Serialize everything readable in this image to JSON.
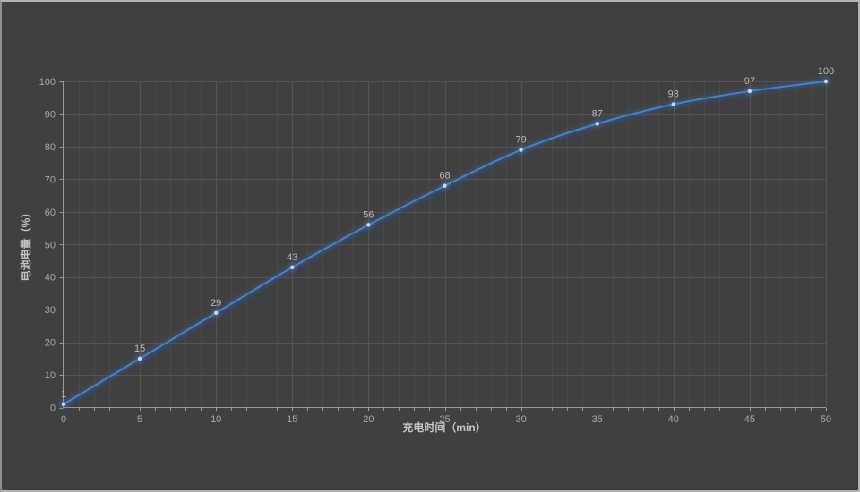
{
  "colors": {
    "background": "#404040",
    "frame_border": "#b3b3b3",
    "line": "#4e80c0",
    "line_glow": "#2f5f9e",
    "marker": "#c5d9f1",
    "grid_major": "#545454",
    "grid_minor": "#4a4a4a",
    "axis": "#9a9a9a",
    "tick_label": "#a9a9a9",
    "data_label": "#b9b9b9",
    "axis_title": "#c4c4c4"
  },
  "chart_data": {
    "type": "line",
    "title": "",
    "x": [
      0,
      5,
      10,
      15,
      20,
      25,
      30,
      35,
      40,
      45,
      50
    ],
    "series": [
      {
        "name": "电池电量",
        "values": [
          1,
          15,
          29,
          43,
          56,
          68,
          79,
          87,
          93,
          97,
          100
        ]
      }
    ],
    "data_point_labels": [
      "1",
      "15",
      "29",
      "43",
      "56",
      "68",
      "79",
      "87",
      "93",
      "97",
      "100"
    ],
    "xlabel": "充电时间（min）",
    "ylabel": "电池电量（%）",
    "x_ticks": [
      "0",
      "5",
      "10",
      "15",
      "20",
      "25",
      "30",
      "35",
      "40",
      "45",
      "50"
    ],
    "y_ticks": [
      "0",
      "10",
      "20",
      "30",
      "40",
      "50",
      "60",
      "70",
      "80",
      "90",
      "100"
    ],
    "xlim": [
      0,
      50
    ],
    "ylim": [
      0,
      100
    ],
    "smooth": true,
    "show_data_labels": true,
    "grid": {
      "on": true,
      "x_minor_step": 1,
      "x_major_step": 5,
      "y_major_step": 10
    },
    "legend": "none"
  }
}
